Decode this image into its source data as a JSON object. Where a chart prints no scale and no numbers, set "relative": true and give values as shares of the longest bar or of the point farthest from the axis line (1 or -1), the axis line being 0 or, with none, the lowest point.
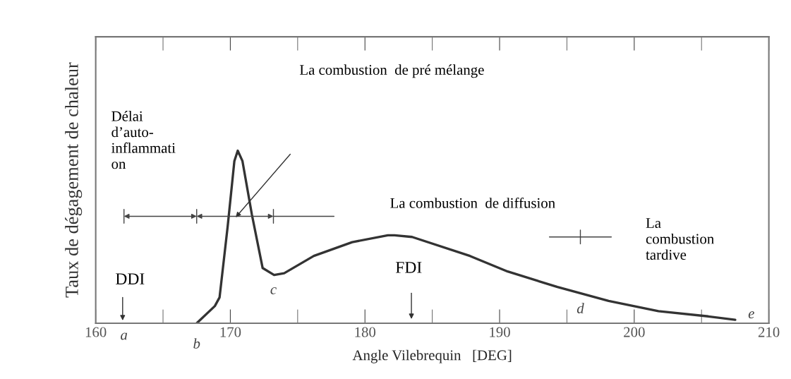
{
  "chart_data": {
    "type": "line",
    "relative": true,
    "xlabel": "Angle Vilebrequin   [DEG]",
    "ylabel": "Taux de dégagement de chaleur",
    "xlim": [
      160,
      210
    ],
    "xticks": [
      160,
      170,
      180,
      190,
      200,
      210
    ],
    "grid": false,
    "legend": false,
    "marker": "none",
    "line_style": "solid",
    "series": [
      {
        "color": "#333333",
        "x": [
          167.5,
          168.85,
          169.2,
          169.8,
          170.3,
          170.55,
          170.9,
          171.6,
          172.4,
          173.25,
          174.0,
          176.2,
          179.05,
          181.7,
          182.2,
          183.5,
          187.8,
          190.6,
          194.3,
          198.1,
          201.8,
          205.5,
          207.5
        ],
        "values": [
          0,
          0.1,
          0.15,
          0.56,
          0.94,
          1.0,
          0.94,
          0.63,
          0.32,
          0.28,
          0.29,
          0.39,
          0.47,
          0.51,
          0.51,
          0.5,
          0.39,
          0.3,
          0.21,
          0.13,
          0.07,
          0.04,
          0.02
        ]
      }
    ],
    "annotations": [
      {
        "text": "b",
        "x": 167.5,
        "y": 0
      },
      {
        "text": "c",
        "x": 173.2,
        "y": 0.28
      },
      {
        "text": "d",
        "x": 196,
        "y": 0.17
      },
      "a",
      "e",
      "DDI",
      "FDI",
      "La combustion  de pré mélange",
      "Délai\nd’auto-\ninflammati\non",
      "La combustion  de diffusion",
      "La\ncombustion\ntardive"
    ]
  }
}
